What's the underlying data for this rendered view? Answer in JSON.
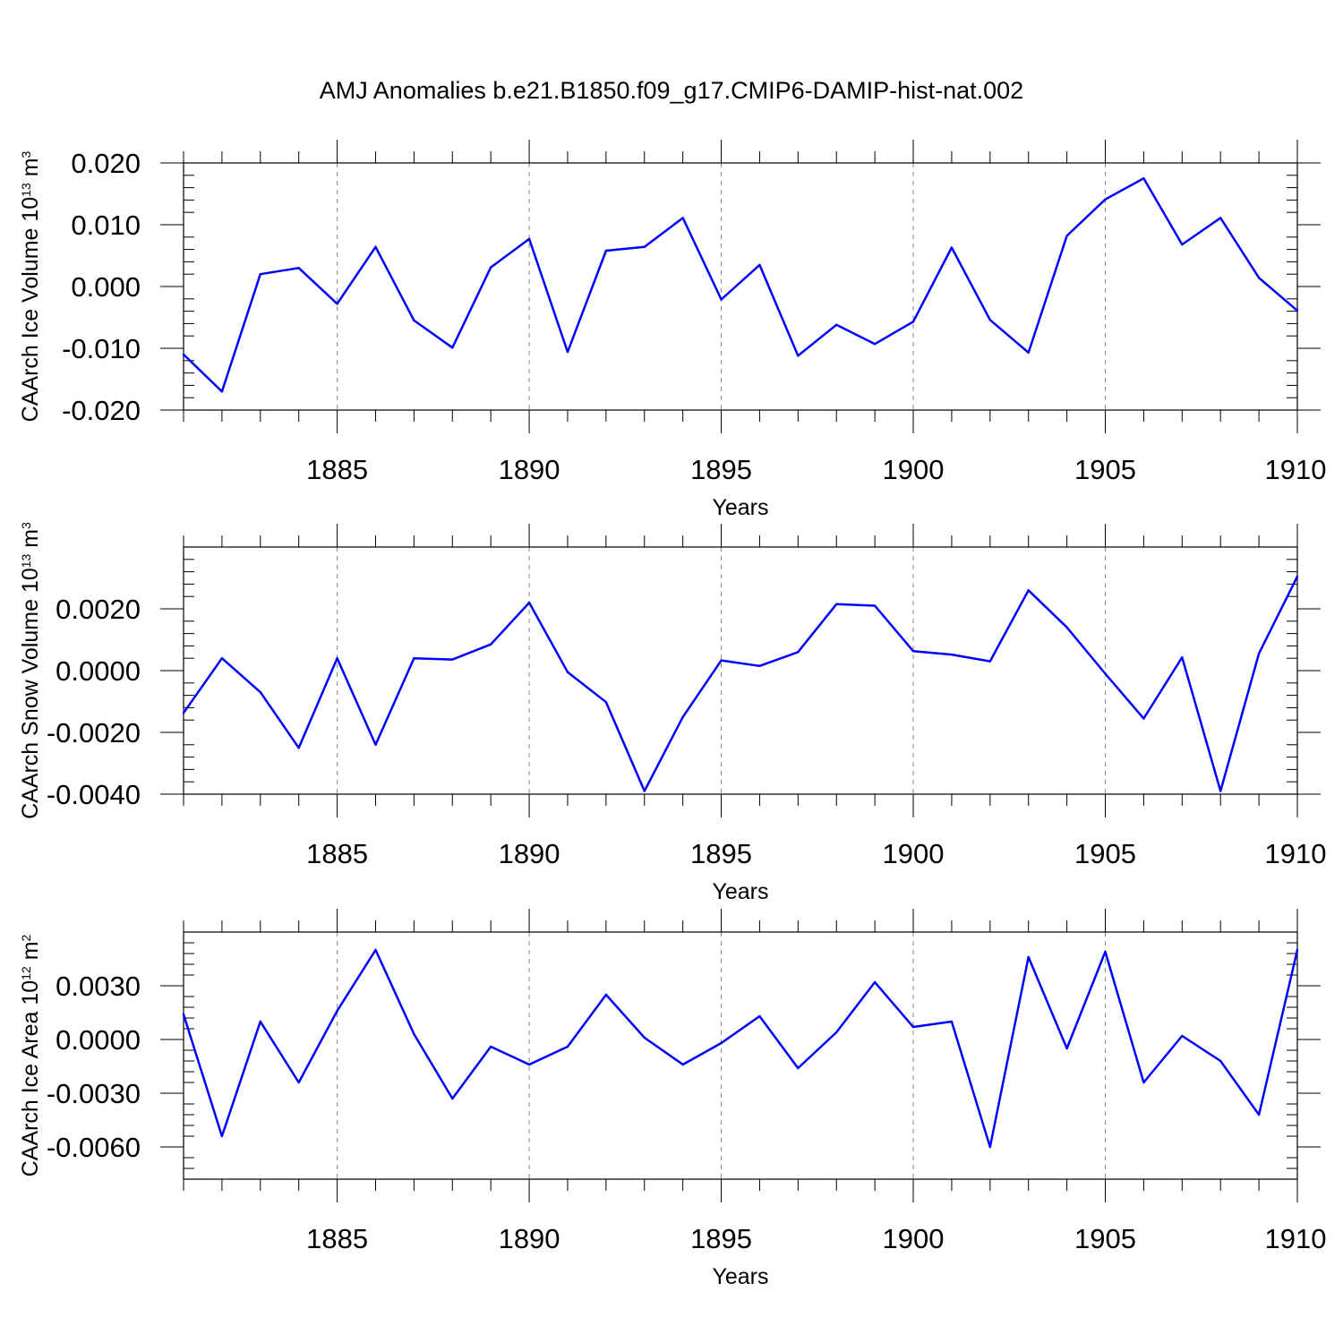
{
  "figure": {
    "title": "AMJ Anomalies b.e21.B1850.f09_g17.CMIP6-DAMIP-hist-nat.002"
  },
  "chart_data": [
    {
      "type": "line",
      "title": "AMJ Anomalies b.e21.B1850.f09_g17.CMIP6-DAMIP-hist-nat.002",
      "xlabel": "Years",
      "ylabel": {
        "base": "CAArch Ice Volume 10",
        "exp": "13",
        "unit": " m",
        "unit_exp": "3"
      },
      "xlim": [
        1881,
        1910
      ],
      "ylim": [
        -0.02,
        0.02
      ],
      "x_ticks": [
        1885,
        1890,
        1895,
        1900,
        1905,
        1910
      ],
      "x_tick_labels": [
        "1885",
        "1890",
        "1895",
        "1900",
        "1905",
        "1910"
      ],
      "y_ticks": [
        -0.02,
        -0.01,
        0.0,
        0.01,
        0.02
      ],
      "y_tick_labels": [
        "-0.020",
        "-0.010",
        "0.000",
        "0.010",
        "0.020"
      ],
      "grid": "vertical dashed at x ticks",
      "line_color": "#0000ff",
      "x": [
        1881,
        1882,
        1883,
        1884,
        1885,
        1886,
        1887,
        1888,
        1889,
        1890,
        1891,
        1892,
        1893,
        1894,
        1895,
        1896,
        1897,
        1898,
        1899,
        1900,
        1901,
        1902,
        1903,
        1904,
        1905,
        1906,
        1907,
        1908,
        1909,
        1910
      ],
      "values": [
        -0.011,
        -0.017,
        0.002,
        0.003,
        -0.0028,
        0.0064,
        -0.0055,
        -0.0099,
        0.0031,
        0.0077,
        -0.0106,
        0.0058,
        0.0064,
        0.0111,
        -0.0021,
        0.0035,
        -0.0112,
        -0.0062,
        -0.0093,
        -0.0057,
        0.0063,
        -0.0054,
        -0.0107,
        0.0082,
        0.0141,
        0.0175,
        0.0068,
        0.0111,
        0.0014,
        -0.0039
      ]
    },
    {
      "type": "line",
      "xlabel": "Years",
      "ylabel": {
        "base": "CAArch Snow Volume 10",
        "exp": "13",
        "unit": " m",
        "unit_exp": "3"
      },
      "xlim": [
        1881,
        1910
      ],
      "ylim": [
        -0.004,
        0.004
      ],
      "x_ticks": [
        1885,
        1890,
        1895,
        1900,
        1905,
        1910
      ],
      "x_tick_labels": [
        "1885",
        "1890",
        "1895",
        "1900",
        "1905",
        "1910"
      ],
      "y_ticks": [
        -0.004,
        -0.002,
        0.0,
        0.002
      ],
      "y_tick_labels": [
        "-0.0040",
        "-0.0020",
        "0.0000",
        "0.0020"
      ],
      "grid": "vertical dashed at x ticks",
      "line_color": "#0000ff",
      "x": [
        1881,
        1882,
        1883,
        1884,
        1885,
        1886,
        1887,
        1888,
        1889,
        1890,
        1891,
        1892,
        1893,
        1894,
        1895,
        1896,
        1897,
        1898,
        1899,
        1900,
        1901,
        1902,
        1903,
        1904,
        1905,
        1906,
        1907,
        1908,
        1909,
        1910
      ],
      "values": [
        -0.00137,
        0.0004,
        -0.0007,
        -0.0025,
        0.0004,
        -0.0024,
        0.0004,
        0.00036,
        0.00085,
        0.0022,
        -5e-05,
        -0.00102,
        -0.0039,
        -0.0015,
        0.00033,
        0.00015,
        0.0006,
        0.00215,
        0.0021,
        0.00063,
        0.00052,
        0.0003,
        0.0026,
        0.0014,
        -0.0001,
        -0.00155,
        0.00043,
        -0.0039,
        0.00055,
        0.00305
      ]
    },
    {
      "type": "line",
      "xlabel": "Years",
      "ylabel": {
        "base": "CAArch Ice Area 10",
        "exp": "12",
        "unit": " m",
        "unit_exp": "2"
      },
      "xlim": [
        1881,
        1910
      ],
      "ylim": [
        -0.0078,
        0.006
      ],
      "x_ticks": [
        1885,
        1890,
        1895,
        1900,
        1905,
        1910
      ],
      "x_tick_labels": [
        "1885",
        "1890",
        "1895",
        "1900",
        "1905",
        "1910"
      ],
      "y_ticks": [
        -0.006,
        -0.003,
        0.0,
        0.003
      ],
      "y_tick_labels": [
        "-0.0060",
        "-0.0030",
        "0.0000",
        "0.0030"
      ],
      "grid": "vertical dashed at x ticks",
      "line_color": "#0000ff",
      "x": [
        1881,
        1882,
        1883,
        1884,
        1885,
        1886,
        1887,
        1888,
        1889,
        1890,
        1891,
        1892,
        1893,
        1894,
        1895,
        1896,
        1897,
        1898,
        1899,
        1900,
        1901,
        1902,
        1903,
        1904,
        1905,
        1906,
        1907,
        1908,
        1909,
        1910
      ],
      "values": [
        0.0014,
        -0.0054,
        0.001,
        -0.0024,
        0.0016,
        0.005,
        0.0003,
        -0.0033,
        -0.0004,
        -0.0014,
        -0.0004,
        0.0025,
        0.0001,
        -0.0014,
        -0.0002,
        0.0013,
        -0.0016,
        0.0004,
        0.0032,
        0.0007,
        0.001,
        -0.006,
        0.0046,
        -0.0005,
        0.0049,
        -0.0024,
        0.0002,
        -0.0012,
        -0.0042,
        0.005
      ]
    }
  ]
}
